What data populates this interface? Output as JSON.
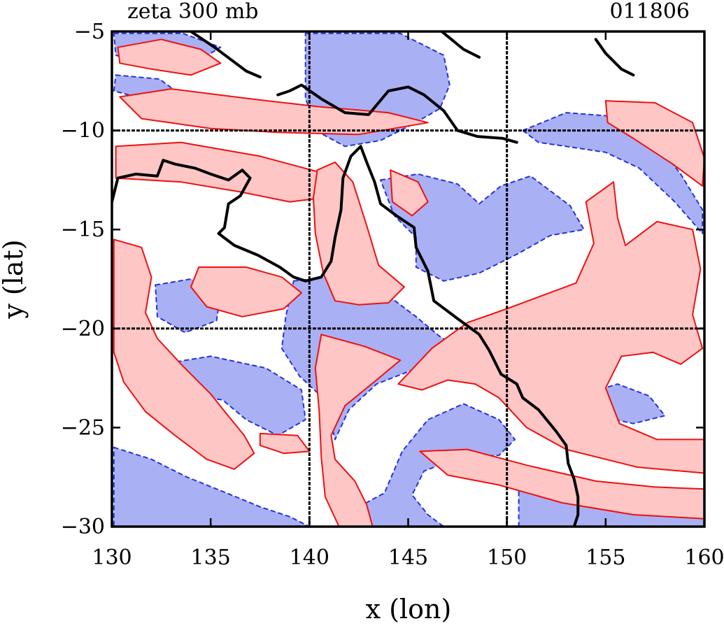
{
  "title_left": "zeta 300 mb",
  "title_right": "011806",
  "colors": {
    "positive_line": "#ee1111",
    "positive_fill": "#ffc6c6",
    "negative_line": "#2233dd",
    "negative_fill": "#aab0f4",
    "coast": "#000000",
    "grid": "#000000"
  },
  "chart_data": {
    "type": "contour",
    "variable": "zeta",
    "level": "300 mb",
    "date_code": "011806",
    "xlabel": "x (lon)",
    "ylabel": "y (lat)",
    "xlim": [
      130,
      160
    ],
    "ylim": [
      -30,
      -5
    ],
    "xticks": [
      130,
      135,
      140,
      145,
      150,
      155,
      160
    ],
    "yticks": [
      -5,
      -10,
      -15,
      -20,
      -25,
      -30
    ],
    "grid_lon": [
      140,
      150
    ],
    "grid_lat": [
      -10,
      -20
    ],
    "grid": true,
    "coastline": [
      [
        [
          130.0,
          -13.6
        ],
        [
          130.3,
          -12.4
        ],
        [
          131.2,
          -12.2
        ],
        [
          132.3,
          -12.3
        ],
        [
          132.6,
          -11.5
        ],
        [
          133.2,
          -11.7
        ],
        [
          134.2,
          -11.9
        ],
        [
          135.0,
          -12.2
        ],
        [
          135.9,
          -12.5
        ],
        [
          136.6,
          -12.0
        ],
        [
          137.0,
          -12.4
        ],
        [
          136.5,
          -13.3
        ],
        [
          135.9,
          -13.7
        ],
        [
          135.7,
          -14.9
        ],
        [
          135.4,
          -15.2
        ],
        [
          136.2,
          -15.8
        ],
        [
          137.4,
          -16.3
        ],
        [
          138.5,
          -16.9
        ],
        [
          139.2,
          -17.4
        ],
        [
          139.8,
          -17.6
        ],
        [
          140.6,
          -17.4
        ],
        [
          141.1,
          -16.6
        ],
        [
          141.3,
          -15.4
        ],
        [
          141.6,
          -14.0
        ],
        [
          141.7,
          -12.4
        ],
        [
          142.1,
          -11.3
        ],
        [
          142.6,
          -10.8
        ],
        [
          142.9,
          -11.6
        ],
        [
          143.3,
          -12.6
        ],
        [
          143.6,
          -13.7
        ],
        [
          144.4,
          -14.3
        ],
        [
          145.3,
          -14.9
        ],
        [
          145.4,
          -15.9
        ],
        [
          146.0,
          -17.1
        ],
        [
          146.3,
          -18.6
        ],
        [
          147.5,
          -19.5
        ],
        [
          148.6,
          -20.3
        ],
        [
          149.1,
          -21.1
        ],
        [
          149.7,
          -22.3
        ],
        [
          150.5,
          -22.8
        ],
        [
          150.8,
          -23.5
        ],
        [
          151.6,
          -24.1
        ],
        [
          152.5,
          -25.2
        ],
        [
          153.0,
          -25.9
        ],
        [
          153.1,
          -26.8
        ],
        [
          153.4,
          -27.6
        ],
        [
          153.6,
          -28.5
        ],
        [
          153.6,
          -29.4
        ],
        [
          153.4,
          -30.0
        ]
      ],
      [
        [
          138.4,
          -8.2
        ],
        [
          139.0,
          -8.0
        ],
        [
          139.6,
          -7.7
        ],
        [
          140.6,
          -8.4
        ],
        [
          141.8,
          -9.1
        ],
        [
          143.0,
          -9.2
        ],
        [
          144.0,
          -8.0
        ],
        [
          145.0,
          -7.8
        ],
        [
          145.8,
          -8.2
        ],
        [
          146.8,
          -9.0
        ],
        [
          147.5,
          -10.0
        ],
        [
          148.5,
          -10.3
        ],
        [
          149.8,
          -10.4
        ],
        [
          150.5,
          -10.6
        ]
      ],
      [
        [
          134.0,
          -5.0
        ],
        [
          135.2,
          -5.8
        ],
        [
          136.8,
          -7.0
        ],
        [
          137.5,
          -7.3
        ]
      ],
      [
        [
          146.7,
          -5.0
        ],
        [
          147.8,
          -5.9
        ],
        [
          148.6,
          -6.3
        ]
      ],
      [
        [
          154.5,
          -5.4
        ],
        [
          155.0,
          -6.1
        ],
        [
          155.8,
          -6.9
        ],
        [
          156.4,
          -7.2
        ]
      ]
    ],
    "positive_regions": [
      [
        [
          130.3,
          -5.8
        ],
        [
          132.5,
          -5.4
        ],
        [
          134.5,
          -5.9
        ],
        [
          135.5,
          -6.6
        ],
        [
          134.0,
          -7.2
        ],
        [
          132.0,
          -6.9
        ],
        [
          130.4,
          -6.6
        ]
      ],
      [
        [
          130.4,
          -8.3
        ],
        [
          133.0,
          -7.9
        ],
        [
          137.0,
          -8.4
        ],
        [
          140.5,
          -8.8
        ],
        [
          144.0,
          -9.1
        ],
        [
          146.0,
          -9.6
        ],
        [
          142.5,
          -10.2
        ],
        [
          138.5,
          -10.1
        ],
        [
          135.0,
          -9.9
        ],
        [
          131.5,
          -9.4
        ]
      ],
      [
        [
          130.2,
          -10.8
        ],
        [
          133.5,
          -10.6
        ],
        [
          137.5,
          -11.3
        ],
        [
          140.5,
          -12.1
        ],
        [
          141.5,
          -13.3
        ],
        [
          139.0,
          -13.6
        ],
        [
          136.5,
          -13.1
        ],
        [
          133.5,
          -12.6
        ],
        [
          130.2,
          -12.4
        ]
      ],
      [
        [
          140.4,
          -12.0
        ],
        [
          141.3,
          -11.6
        ],
        [
          142.2,
          -12.6
        ],
        [
          142.9,
          -14.8
        ],
        [
          143.5,
          -16.8
        ],
        [
          144.8,
          -17.9
        ],
        [
          144.0,
          -18.7
        ],
        [
          142.5,
          -18.8
        ],
        [
          141.3,
          -18.6
        ],
        [
          140.7,
          -17.2
        ],
        [
          140.3,
          -15.2
        ],
        [
          140.2,
          -13.4
        ]
      ],
      [
        [
          144.1,
          -12.0
        ],
        [
          145.5,
          -12.6
        ],
        [
          146.0,
          -13.6
        ],
        [
          145.2,
          -14.3
        ],
        [
          144.2,
          -13.6
        ]
      ],
      [
        [
          130.1,
          -15.5
        ],
        [
          131.5,
          -15.9
        ],
        [
          132.0,
          -17.4
        ],
        [
          131.7,
          -19.2
        ],
        [
          132.3,
          -20.5
        ],
        [
          133.6,
          -21.9
        ],
        [
          135.0,
          -23.3
        ],
        [
          135.8,
          -24.3
        ],
        [
          136.7,
          -25.4
        ],
        [
          137.2,
          -26.3
        ],
        [
          136.2,
          -27.1
        ],
        [
          134.8,
          -26.6
        ],
        [
          133.2,
          -25.4
        ],
        [
          131.7,
          -24.2
        ],
        [
          130.6,
          -22.7
        ],
        [
          130.1,
          -21.2
        ]
      ],
      [
        [
          134.4,
          -16.9
        ],
        [
          136.8,
          -16.9
        ],
        [
          138.6,
          -17.4
        ],
        [
          139.6,
          -18.2
        ],
        [
          138.7,
          -19.0
        ],
        [
          136.6,
          -19.4
        ],
        [
          134.8,
          -18.9
        ],
        [
          134.0,
          -17.9
        ]
      ],
      [
        [
          140.6,
          -20.3
        ],
        [
          142.8,
          -20.9
        ],
        [
          144.6,
          -21.6
        ],
        [
          143.4,
          -22.6
        ],
        [
          141.8,
          -23.9
        ],
        [
          141.1,
          -25.4
        ],
        [
          141.3,
          -26.6
        ],
        [
          142.3,
          -27.7
        ],
        [
          142.9,
          -28.9
        ],
        [
          143.2,
          -30.0
        ],
        [
          141.5,
          -30.0
        ],
        [
          140.8,
          -28.5
        ],
        [
          140.6,
          -26.5
        ],
        [
          140.5,
          -24.2
        ],
        [
          140.3,
          -22.0
        ]
      ],
      [
        [
          144.5,
          -22.8
        ],
        [
          146.2,
          -21.0
        ],
        [
          148.0,
          -19.7
        ],
        [
          150.0,
          -19.0
        ],
        [
          153.5,
          -17.7
        ],
        [
          154.4,
          -15.7
        ],
        [
          154.0,
          -13.6
        ],
        [
          155.4,
          -12.6
        ],
        [
          155.6,
          -14.4
        ],
        [
          156.0,
          -15.8
        ],
        [
          157.6,
          -14.6
        ],
        [
          159.4,
          -15.0
        ],
        [
          159.8,
          -17.0
        ],
        [
          159.4,
          -19.3
        ],
        [
          159.9,
          -21.0
        ],
        [
          158.8,
          -21.8
        ],
        [
          157.4,
          -21.2
        ],
        [
          155.8,
          -21.4
        ],
        [
          155.0,
          -23.0
        ],
        [
          155.7,
          -24.8
        ],
        [
          157.6,
          -25.6
        ],
        [
          160.0,
          -25.6
        ],
        [
          160.0,
          -27.3
        ],
        [
          156.6,
          -27.0
        ],
        [
          153.0,
          -26.1
        ],
        [
          151.0,
          -25.0
        ],
        [
          149.6,
          -23.5
        ],
        [
          148.4,
          -22.8
        ],
        [
          147.0,
          -22.6
        ],
        [
          145.7,
          -23.1
        ]
      ],
      [
        [
          145.6,
          -26.2
        ],
        [
          148.0,
          -26.1
        ],
        [
          151.0,
          -26.9
        ],
        [
          154.5,
          -27.7
        ],
        [
          157.5,
          -28.0
        ],
        [
          160.0,
          -28.1
        ],
        [
          160.0,
          -29.6
        ],
        [
          156.4,
          -29.4
        ],
        [
          152.8,
          -28.8
        ],
        [
          149.6,
          -27.9
        ],
        [
          147.0,
          -27.4
        ]
      ],
      [
        [
          155.0,
          -8.5
        ],
        [
          157.5,
          -8.6
        ],
        [
          159.4,
          -9.6
        ],
        [
          160.0,
          -11.4
        ],
        [
          159.9,
          -12.8
        ],
        [
          158.4,
          -11.7
        ],
        [
          156.4,
          -10.4
        ],
        [
          155.1,
          -9.6
        ]
      ],
      [
        [
          137.5,
          -25.3
        ],
        [
          139.4,
          -25.4
        ],
        [
          140.0,
          -26.2
        ],
        [
          138.7,
          -26.3
        ],
        [
          137.5,
          -25.9
        ]
      ]
    ],
    "negative_regions": [
      [
        [
          130.1,
          -5.1
        ],
        [
          133.6,
          -5.1
        ],
        [
          135.5,
          -5.8
        ],
        [
          134.0,
          -6.7
        ],
        [
          131.6,
          -6.6
        ],
        [
          130.2,
          -6.2
        ]
      ],
      [
        [
          130.2,
          -7.2
        ],
        [
          132.4,
          -7.4
        ],
        [
          133.5,
          -8.2
        ],
        [
          131.6,
          -8.4
        ],
        [
          130.1,
          -8.0
        ]
      ],
      [
        [
          139.8,
          -5.1
        ],
        [
          144.6,
          -5.1
        ],
        [
          146.8,
          -6.2
        ],
        [
          147.1,
          -7.7
        ],
        [
          146.6,
          -8.9
        ],
        [
          145.2,
          -9.7
        ],
        [
          143.6,
          -10.5
        ],
        [
          141.8,
          -10.8
        ],
        [
          140.5,
          -10.1
        ],
        [
          139.8,
          -8.4
        ]
      ],
      [
        [
          150.8,
          -10.0
        ],
        [
          153.0,
          -9.1
        ],
        [
          155.6,
          -9.3
        ],
        [
          157.4,
          -10.4
        ],
        [
          158.8,
          -12.2
        ],
        [
          159.9,
          -14.0
        ],
        [
          159.9,
          -15.2
        ],
        [
          158.5,
          -13.6
        ],
        [
          156.7,
          -11.9
        ],
        [
          155.0,
          -11.1
        ],
        [
          153.0,
          -10.8
        ],
        [
          151.6,
          -10.6
        ]
      ],
      [
        [
          143.6,
          -12.5
        ],
        [
          145.5,
          -12.2
        ],
        [
          147.5,
          -12.7
        ],
        [
          148.6,
          -13.7
        ],
        [
          149.7,
          -12.8
        ],
        [
          151.2,
          -12.3
        ],
        [
          153.2,
          -13.8
        ],
        [
          153.9,
          -15.0
        ],
        [
          152.2,
          -15.3
        ],
        [
          150.6,
          -16.2
        ],
        [
          148.6,
          -17.2
        ],
        [
          146.8,
          -17.6
        ],
        [
          145.4,
          -16.9
        ],
        [
          145.4,
          -15.4
        ],
        [
          144.3,
          -14.3
        ]
      ],
      [
        [
          139.2,
          -17.6
        ],
        [
          141.8,
          -17.3
        ],
        [
          143.8,
          -18.2
        ],
        [
          145.4,
          -19.4
        ],
        [
          146.6,
          -20.4
        ],
        [
          147.6,
          -21.0
        ],
        [
          145.2,
          -22.1
        ],
        [
          143.4,
          -22.8
        ],
        [
          142.0,
          -24.1
        ],
        [
          141.3,
          -25.6
        ],
        [
          140.8,
          -23.6
        ],
        [
          139.5,
          -22.4
        ],
        [
          138.6,
          -21.0
        ],
        [
          138.8,
          -19.4
        ]
      ],
      [
        [
          132.2,
          -17.8
        ],
        [
          134.0,
          -17.5
        ],
        [
          135.5,
          -18.2
        ],
        [
          135.3,
          -19.6
        ],
        [
          133.7,
          -20.2
        ],
        [
          132.3,
          -19.4
        ]
      ],
      [
        [
          132.5,
          -21.8
        ],
        [
          135.0,
          -21.4
        ],
        [
          137.8,
          -22.0
        ],
        [
          139.6,
          -23.1
        ],
        [
          139.8,
          -24.6
        ],
        [
          138.4,
          -25.4
        ],
        [
          136.8,
          -24.6
        ],
        [
          135.6,
          -23.6
        ],
        [
          134.0,
          -23.4
        ],
        [
          132.8,
          -22.8
        ]
      ],
      [
        [
          130.1,
          -26.0
        ],
        [
          132.0,
          -26.6
        ],
        [
          133.8,
          -27.5
        ],
        [
          135.8,
          -28.3
        ],
        [
          137.5,
          -29.0
        ],
        [
          139.0,
          -29.5
        ],
        [
          140.0,
          -30.0
        ],
        [
          130.1,
          -30.0
        ]
      ],
      [
        [
          142.5,
          -29.0
        ],
        [
          143.8,
          -28.3
        ],
        [
          144.7,
          -26.2
        ],
        [
          146.0,
          -24.6
        ],
        [
          147.8,
          -23.8
        ],
        [
          149.6,
          -24.6
        ],
        [
          150.4,
          -25.6
        ],
        [
          149.6,
          -26.4
        ],
        [
          147.6,
          -26.5
        ],
        [
          145.8,
          -27.2
        ],
        [
          145.2,
          -28.4
        ],
        [
          146.0,
          -29.4
        ],
        [
          146.8,
          -30.0
        ],
        [
          143.2,
          -30.0
        ]
      ],
      [
        [
          150.6,
          -27.6
        ],
        [
          153.0,
          -28.1
        ],
        [
          155.4,
          -28.4
        ],
        [
          158.0,
          -28.5
        ],
        [
          160.0,
          -28.6
        ],
        [
          160.0,
          -30.0
        ],
        [
          150.6,
          -30.0
        ]
      ],
      [
        [
          154.0,
          -23.3
        ],
        [
          155.6,
          -22.8
        ],
        [
          157.2,
          -23.4
        ],
        [
          158.0,
          -24.4
        ],
        [
          156.4,
          -24.8
        ],
        [
          154.6,
          -24.4
        ]
      ],
      [
        [
          150.3,
          -21.3
        ],
        [
          151.3,
          -21.2
        ],
        [
          151.7,
          -22.4
        ],
        [
          151.6,
          -23.6
        ],
        [
          150.7,
          -23.4
        ],
        [
          150.4,
          -22.4
        ]
      ]
    ]
  }
}
